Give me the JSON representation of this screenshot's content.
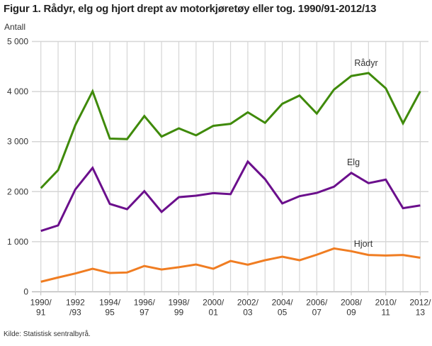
{
  "chart_data": {
    "type": "line",
    "title": "Figur 1. Rådyr, elg og hjort drept av motorkjøretøy eller tog. 1990/91-2012/13",
    "ylabel": "Antall",
    "xlabel": "",
    "ylim": [
      0,
      5000
    ],
    "yticks": [
      "0",
      "1 000",
      "2 000",
      "3 000",
      "4 000",
      "5 000"
    ],
    "grid": true,
    "legend": "inline labels",
    "x": [
      "1990/91",
      "1991/92",
      "1992/93",
      "1993/94",
      "1994/95",
      "1995/96",
      "1996/97",
      "1997/98",
      "1998/99",
      "1999/00",
      "2000/01",
      "2001/02",
      "2002/03",
      "2003/04",
      "2004/05",
      "2005/06",
      "2006/07",
      "2007/08",
      "2008/09",
      "2009/10",
      "2010/11",
      "2011/12",
      "2012/13"
    ],
    "xtick_labels": [
      [
        "1990/",
        "91"
      ],
      [
        "1992",
        "/93"
      ],
      [
        "1994/",
        "95"
      ],
      [
        "1996/",
        "97"
      ],
      [
        "1998/",
        "99"
      ],
      [
        "2000/",
        "01"
      ],
      [
        "2002/",
        "03"
      ],
      [
        "2004/",
        "05"
      ],
      [
        "2006/",
        "07"
      ],
      [
        "2008/",
        "09"
      ],
      [
        "2010/",
        "11"
      ],
      [
        "2012/",
        "13"
      ]
    ],
    "series": [
      {
        "name": "Rådyr",
        "color": "#3f8a0a",
        "values": [
          2070,
          2430,
          3330,
          4005,
          3060,
          3050,
          3510,
          3100,
          3265,
          3125,
          3315,
          3355,
          3585,
          3375,
          3755,
          3920,
          3560,
          4040,
          4310,
          4370,
          4065,
          3365,
          4005
        ]
      },
      {
        "name": "Elg",
        "color": "#6b0f8c",
        "values": [
          1215,
          1325,
          2045,
          2475,
          1755,
          1650,
          2010,
          1595,
          1890,
          1920,
          1970,
          1950,
          2600,
          2250,
          1765,
          1910,
          1975,
          2100,
          2375,
          2170,
          2240,
          1670,
          1725
        ]
      },
      {
        "name": "Hjort",
        "color": "#f07d22",
        "values": [
          200,
          285,
          365,
          460,
          375,
          385,
          515,
          445,
          490,
          545,
          460,
          615,
          540,
          630,
          700,
          630,
          740,
          865,
          810,
          735,
          725,
          735,
          680
        ]
      }
    ]
  },
  "source": "Kilde: Statistisk sentralbyrå."
}
